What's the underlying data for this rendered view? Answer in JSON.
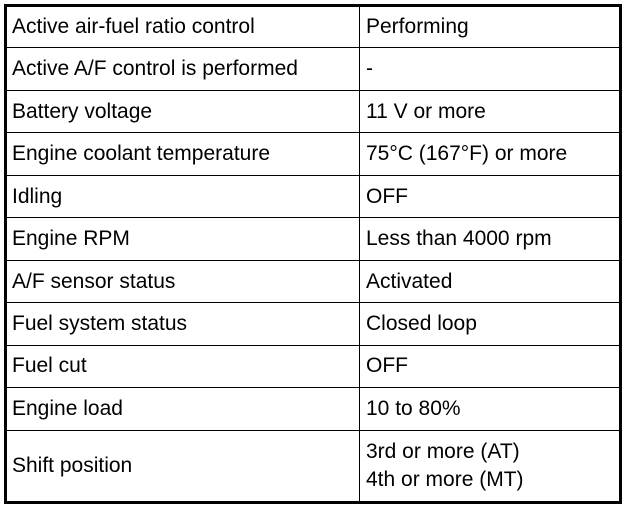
{
  "table": {
    "rows": [
      [
        "Active air-fuel ratio control",
        [
          "Performing"
        ]
      ],
      [
        "Active A/F control is performed",
        [
          "-"
        ]
      ],
      [
        "Battery voltage",
        [
          "11 V or more"
        ]
      ],
      [
        "Engine coolant temperature",
        [
          "75°C (167°F) or more"
        ]
      ],
      [
        "Idling",
        [
          "OFF"
        ]
      ],
      [
        "Engine RPM",
        [
          "Less than 4000 rpm"
        ]
      ],
      [
        "A/F sensor status",
        [
          "Activated"
        ]
      ],
      [
        "Fuel system status",
        [
          "Closed loop"
        ]
      ],
      [
        "Fuel cut",
        [
          "OFF"
        ]
      ],
      [
        "Engine load",
        [
          "10 to 80%"
        ]
      ],
      [
        "Shift position",
        [
          "3rd or more (AT)",
          "4th or more (MT)"
        ]
      ]
    ]
  }
}
